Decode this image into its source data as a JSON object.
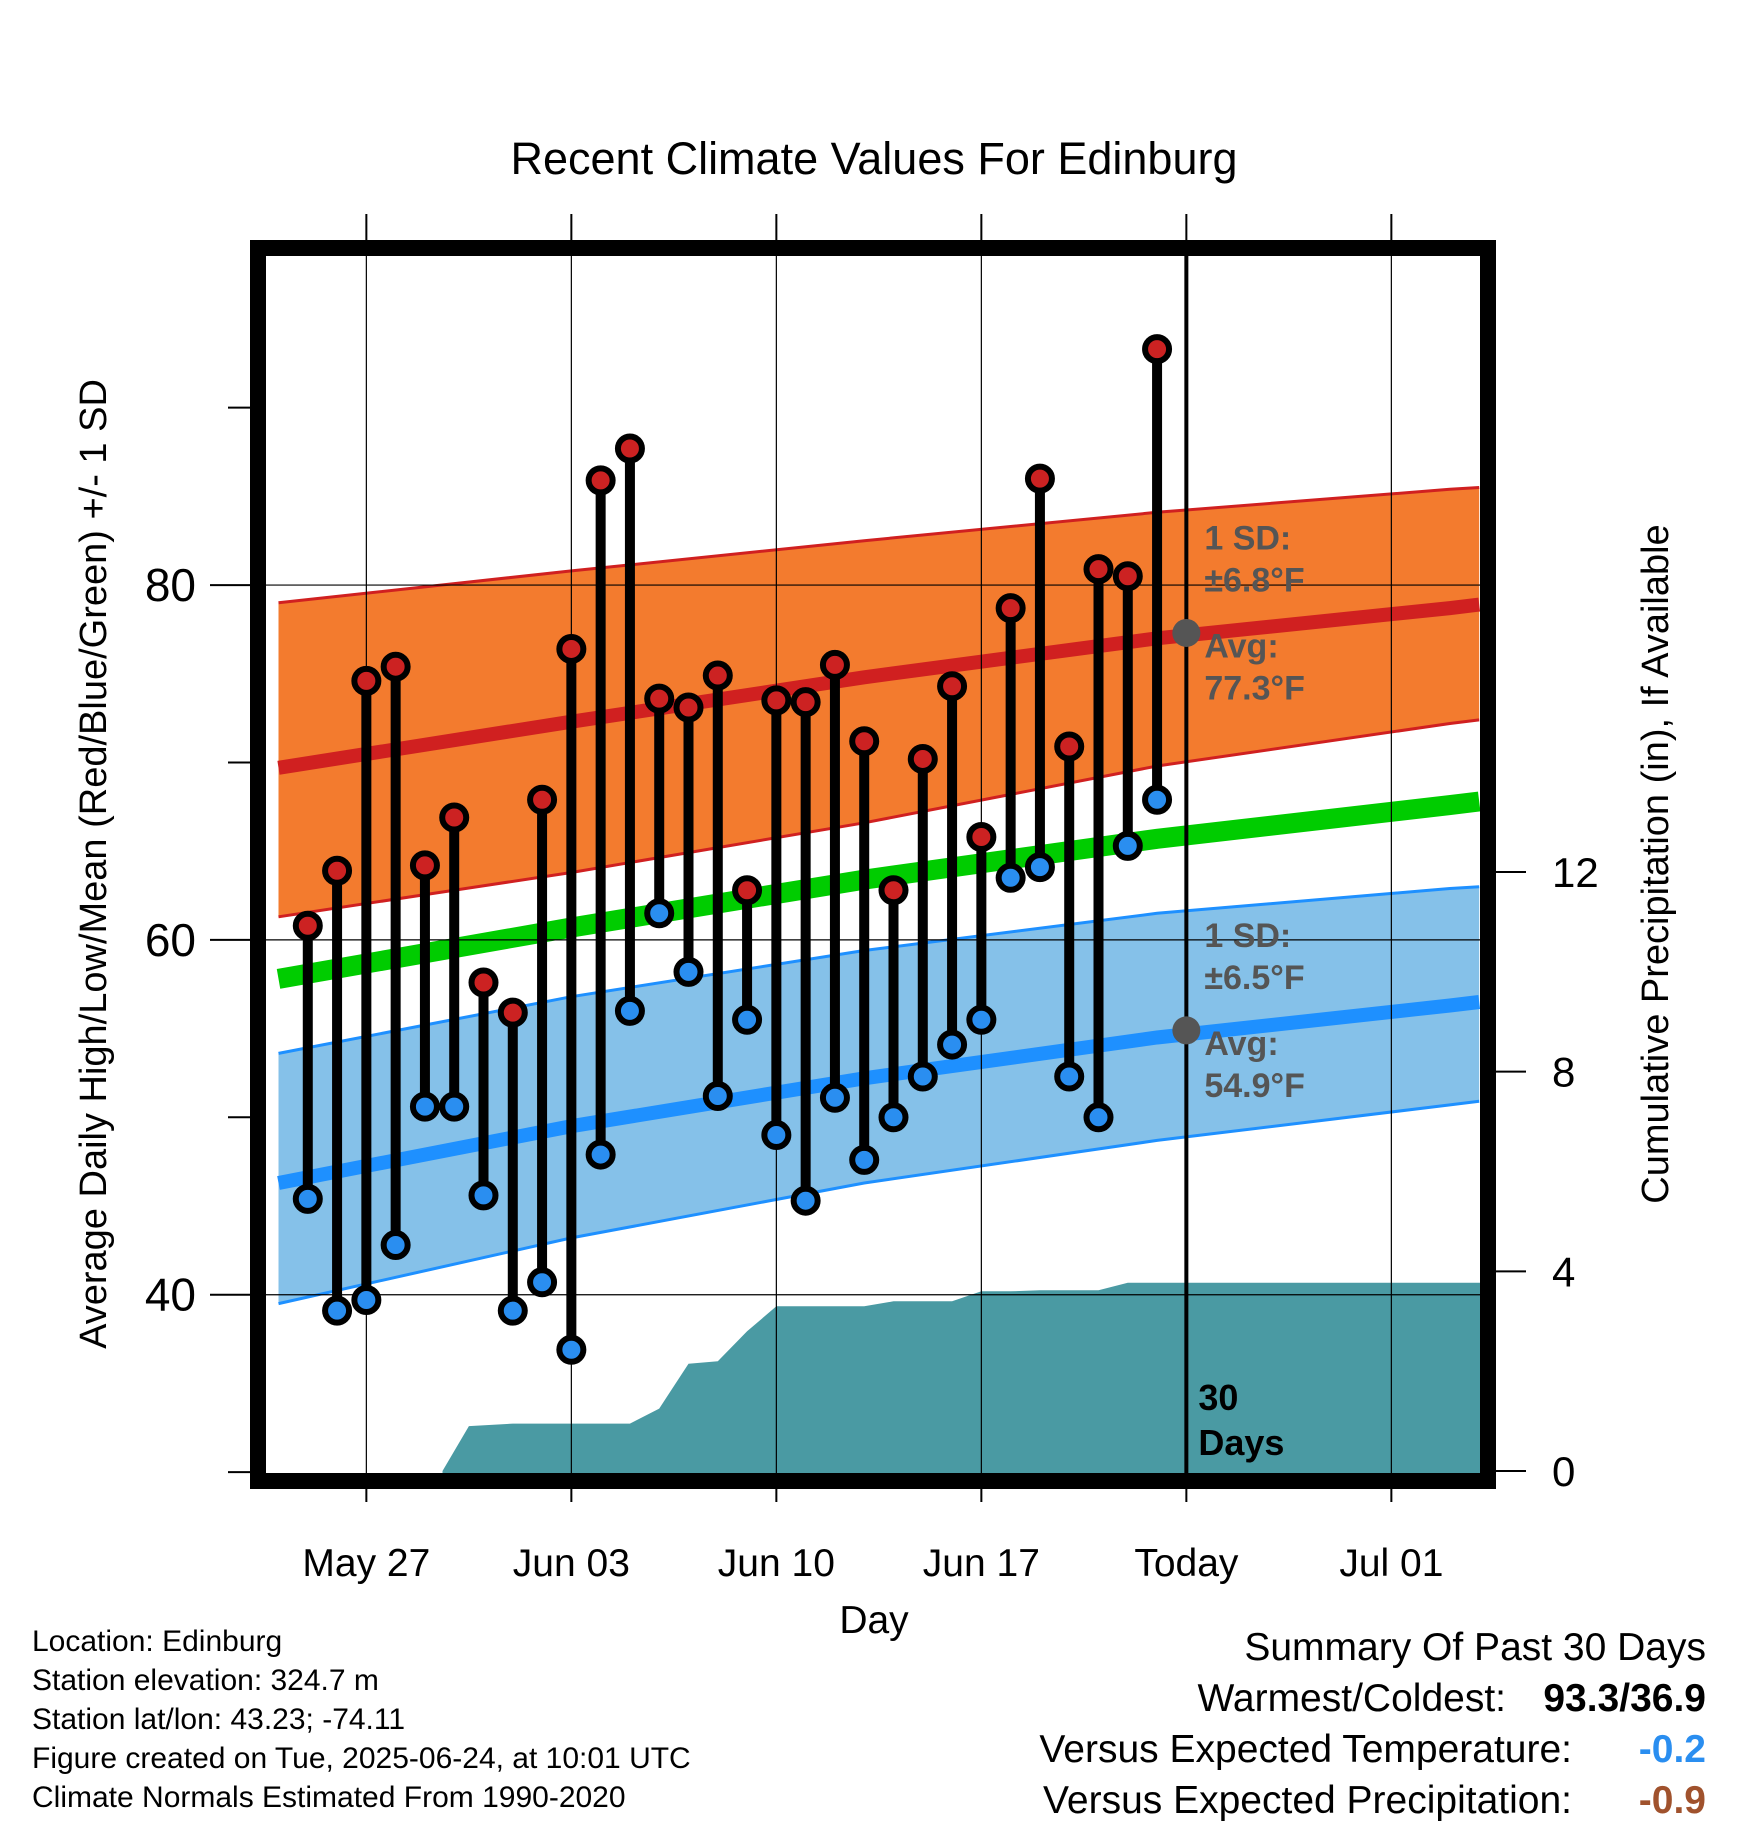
{
  "chart_data": {
    "type": "line",
    "title": "Recent Climate Values For Edinburg",
    "xlabel": "Day",
    "ylabel_left": "Average Daily High/Low/Mean (Red/Blue/Green) +/- 1 SD",
    "ylabel_right": "Cumulative Precipitation (in), If Available",
    "x_tick_labels": [
      "May 27",
      "Jun 03",
      "Jun 10",
      "Jun 17",
      "Today",
      "Jul 01"
    ],
    "x_tick_days": [
      3,
      10,
      17,
      24,
      31,
      38
    ],
    "xlim_days": [
      -0.7,
      41.3
    ],
    "today_day": 31,
    "today_label": "30\nDays",
    "y_left_ticks": [
      40,
      60,
      80
    ],
    "y_left_minor_ticks": [
      30,
      50,
      70,
      90
    ],
    "ylim_left": [
      29.5,
      99
    ],
    "y_right_ticks": [
      0,
      4,
      8,
      12
    ],
    "ylim_right": [
      -0.2,
      24.5
    ],
    "grid": true,
    "colors": {
      "high_band": "#f37b2e",
      "high_line": "#d02020",
      "low_band": "#85c1e9",
      "low_line": "#1e90ff",
      "mean_line": "#00cc00",
      "precip": "#4a9aa3",
      "high_dot": "#cc2222",
      "low_dot": "#2a8ef0",
      "avg_marker": "#555555",
      "annot_text": "#555555"
    },
    "normals": {
      "x": [
        0,
        10,
        20,
        30,
        40,
        41
      ],
      "high_mean": [
        69.7,
        72.3,
        74.8,
        77.0,
        78.7,
        78.9
      ],
      "high_upper": [
        79.0,
        80.8,
        82.5,
        84.1,
        85.4,
        85.5
      ],
      "high_lower": [
        61.3,
        63.8,
        66.6,
        69.8,
        72.2,
        72.4
      ],
      "mean": [
        57.8,
        60.7,
        63.4,
        65.7,
        67.6,
        67.8
      ],
      "low_mean": [
        46.3,
        49.5,
        52.2,
        54.5,
        56.3,
        56.5
      ],
      "low_upper": [
        53.6,
        56.8,
        59.4,
        61.5,
        62.9,
        63.0
      ],
      "low_lower": [
        39.5,
        43.2,
        46.3,
        48.7,
        50.7,
        50.9
      ]
    },
    "series": [
      {
        "name": "High",
        "x": [
          1,
          2,
          3,
          4,
          5,
          6,
          7,
          8,
          9,
          10,
          11,
          12,
          13,
          14,
          15,
          16,
          17,
          18,
          19,
          20,
          21,
          22,
          23,
          24,
          25,
          26,
          27,
          28,
          29,
          30
        ],
        "values": [
          60.8,
          63.9,
          74.6,
          75.4,
          64.2,
          66.9,
          57.6,
          55.9,
          67.9,
          76.4,
          85.9,
          87.7,
          73.6,
          73.1,
          74.9,
          62.8,
          73.5,
          73.4,
          75.5,
          71.2,
          62.8,
          70.2,
          74.3,
          65.8,
          78.7,
          86.0,
          70.9,
          80.9,
          80.5,
          93.3
        ]
      },
      {
        "name": "Low",
        "x": [
          1,
          2,
          3,
          4,
          5,
          6,
          7,
          8,
          9,
          10,
          11,
          12,
          13,
          14,
          15,
          16,
          17,
          18,
          19,
          20,
          21,
          22,
          23,
          24,
          25,
          26,
          27,
          28,
          29,
          30
        ],
        "values": [
          45.4,
          39.1,
          39.7,
          42.8,
          50.6,
          50.6,
          45.6,
          39.1,
          40.7,
          36.9,
          47.9,
          56.0,
          61.5,
          58.2,
          51.2,
          55.5,
          49.0,
          45.3,
          51.1,
          47.6,
          50.0,
          52.3,
          54.1,
          55.5,
          63.5,
          64.1,
          52.3,
          50.0,
          65.3,
          67.9
        ]
      },
      {
        "name": "Cumulative Precipitation",
        "x": [
          5.6,
          6.5,
          8,
          10,
          11,
          12,
          13,
          14,
          15,
          16,
          17,
          18,
          19,
          20,
          21,
          22,
          23,
          24,
          25,
          26,
          27,
          28,
          29,
          30,
          31,
          41.3
        ],
        "values": [
          0,
          0.9,
          0.95,
          0.95,
          0.95,
          0.95,
          1.25,
          2.15,
          2.2,
          2.8,
          3.3,
          3.3,
          3.3,
          3.3,
          3.4,
          3.4,
          3.4,
          3.6,
          3.6,
          3.62,
          3.62,
          3.62,
          3.77,
          3.77,
          3.77,
          3.77
        ]
      }
    ],
    "annotations": {
      "high": {
        "sd_label": "1 SD:",
        "sd_value": "±6.8°F",
        "avg_label": "Avg:",
        "avg_value": "77.3°F",
        "avg": 77.3
      },
      "low": {
        "sd_label": "1 SD:",
        "sd_value": "±6.5°F",
        "avg_label": "Avg:",
        "avg_value": "54.9°F",
        "avg": 54.9
      }
    }
  },
  "footer": {
    "location": "Location: Edinburg",
    "elevation": "Station elevation: 324.7 m",
    "latlon": "Station lat/lon: 43.23; -74.11",
    "created": "Figure created on Tue, 2025-06-24, at 10:01 UTC",
    "normals": "Climate Normals Estimated From 1990-2020"
  },
  "summary": {
    "title": "Summary Of Past 30 Days",
    "warmest_label": "Warmest/Coldest:",
    "warmest_value": "93.3/36.9",
    "temp_label": "Versus Expected Temperature:",
    "temp_value": "-0.2",
    "temp_color": "#2a8ef0",
    "precip_label": "Versus Expected Precipitation:",
    "precip_value": "-0.9",
    "precip_color": "#a0522d"
  }
}
